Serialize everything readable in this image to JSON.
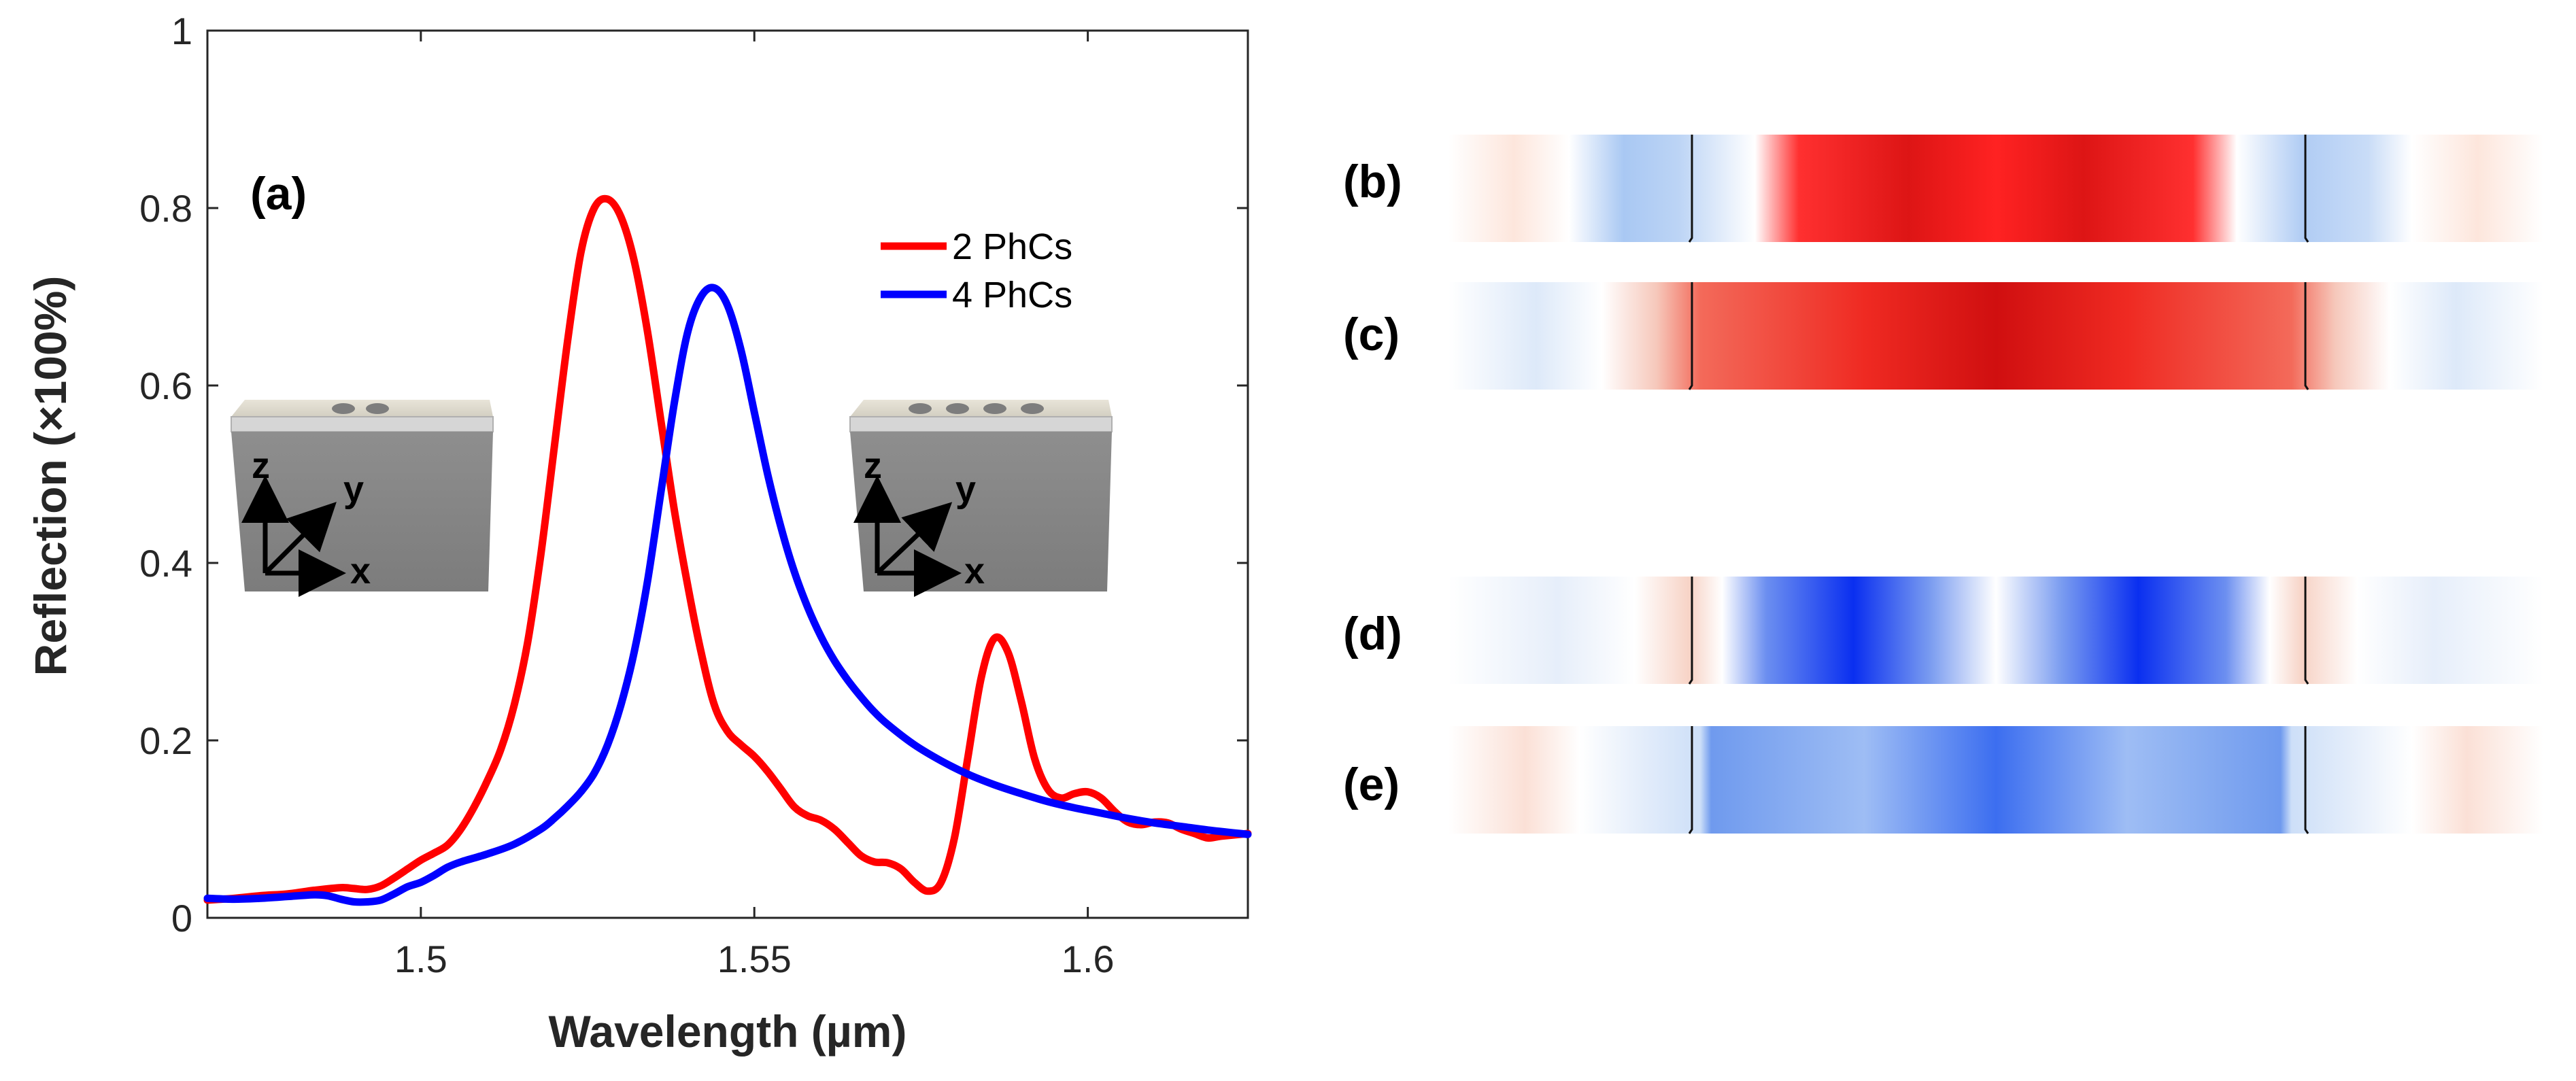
{
  "chart_data": {
    "type": "line",
    "panel_label": "(a)",
    "xlabel": "Wavelength (µm)",
    "ylabel": "Reflection (×100%)",
    "xlim": [
      1.468,
      1.624
    ],
    "ylim": [
      0,
      1
    ],
    "xticks": [
      1.5,
      1.55,
      1.6
    ],
    "xtick_labels": [
      "1.5",
      "1.55",
      "1.6"
    ],
    "yticks": [
      0,
      0.2,
      0.4,
      0.6,
      0.8,
      1
    ],
    "ytick_labels": [
      "0",
      "0.2",
      "0.4",
      "0.6",
      "0.8",
      "1"
    ],
    "grid": false,
    "legend_position": "top-right",
    "series": [
      {
        "name": "2 PhCs",
        "color": "#ff0000",
        "x": [
          1.468,
          1.472,
          1.476,
          1.48,
          1.484,
          1.488,
          1.49,
          1.492,
          1.494,
          1.496,
          1.498,
          1.5,
          1.502,
          1.504,
          1.506,
          1.508,
          1.51,
          1.512,
          1.514,
          1.516,
          1.518,
          1.52,
          1.522,
          1.524,
          1.526,
          1.528,
          1.53,
          1.532,
          1.534,
          1.536,
          1.538,
          1.54,
          1.542,
          1.544,
          1.546,
          1.548,
          1.55,
          1.552,
          1.554,
          1.556,
          1.558,
          1.56,
          1.562,
          1.564,
          1.566,
          1.568,
          1.57,
          1.572,
          1.574,
          1.576,
          1.578,
          1.58,
          1.582,
          1.584,
          1.586,
          1.588,
          1.59,
          1.592,
          1.594,
          1.596,
          1.598,
          1.6,
          1.602,
          1.604,
          1.606,
          1.608,
          1.61,
          1.612,
          1.614,
          1.616,
          1.618,
          1.62,
          1.624
        ],
        "y": [
          0.02,
          0.022,
          0.025,
          0.027,
          0.031,
          0.034,
          0.033,
          0.032,
          0.036,
          0.045,
          0.055,
          0.065,
          0.073,
          0.082,
          0.1,
          0.125,
          0.155,
          0.19,
          0.24,
          0.31,
          0.41,
          0.53,
          0.65,
          0.75,
          0.8,
          0.81,
          0.79,
          0.74,
          0.66,
          0.56,
          0.46,
          0.375,
          0.3,
          0.24,
          0.21,
          0.195,
          0.182,
          0.165,
          0.145,
          0.125,
          0.115,
          0.11,
          0.1,
          0.085,
          0.07,
          0.063,
          0.062,
          0.055,
          0.04,
          0.03,
          0.04,
          0.09,
          0.18,
          0.27,
          0.315,
          0.3,
          0.245,
          0.18,
          0.145,
          0.135,
          0.14,
          0.142,
          0.135,
          0.12,
          0.108,
          0.105,
          0.108,
          0.107,
          0.1,
          0.095,
          0.09,
          0.092,
          0.095
        ]
      },
      {
        "name": "4 PhCs",
        "color": "#0000ff",
        "x": [
          1.468,
          1.472,
          1.476,
          1.48,
          1.484,
          1.486,
          1.488,
          1.49,
          1.492,
          1.494,
          1.496,
          1.498,
          1.5,
          1.502,
          1.504,
          1.506,
          1.51,
          1.514,
          1.518,
          1.52,
          1.522,
          1.524,
          1.526,
          1.528,
          1.53,
          1.532,
          1.534,
          1.536,
          1.538,
          1.54,
          1.542,
          1.544,
          1.546,
          1.548,
          1.55,
          1.552,
          1.554,
          1.556,
          1.558,
          1.56,
          1.562,
          1.564,
          1.566,
          1.568,
          1.57,
          1.574,
          1.578,
          1.582,
          1.586,
          1.59,
          1.594,
          1.598,
          1.602,
          1.606,
          1.61,
          1.614,
          1.618,
          1.624
        ],
        "y": [
          0.022,
          0.021,
          0.022,
          0.024,
          0.026,
          0.025,
          0.021,
          0.018,
          0.018,
          0.02,
          0.027,
          0.035,
          0.04,
          0.048,
          0.057,
          0.063,
          0.072,
          0.083,
          0.1,
          0.112,
          0.126,
          0.142,
          0.163,
          0.195,
          0.24,
          0.3,
          0.38,
          0.48,
          0.58,
          0.66,
          0.7,
          0.71,
          0.69,
          0.64,
          0.57,
          0.5,
          0.44,
          0.39,
          0.35,
          0.317,
          0.29,
          0.268,
          0.249,
          0.232,
          0.218,
          0.195,
          0.177,
          0.162,
          0.15,
          0.14,
          0.131,
          0.124,
          0.118,
          0.112,
          0.107,
          0.103,
          0.099,
          0.094
        ]
      }
    ],
    "insets": [
      {
        "name": "2-phc-device",
        "axis_labels": [
          "z",
          "y",
          "x"
        ]
      },
      {
        "name": "4-phc-device",
        "axis_labels": [
          "z",
          "y",
          "x"
        ]
      }
    ]
  },
  "field_maps": {
    "labels": [
      "(b)",
      "(c)",
      "(d)",
      "(e)"
    ],
    "colors": {
      "red": "#e00000",
      "blue": "#0022ee",
      "light_red": "#f5c6b8",
      "light_blue": "#c6dcf7"
    }
  }
}
